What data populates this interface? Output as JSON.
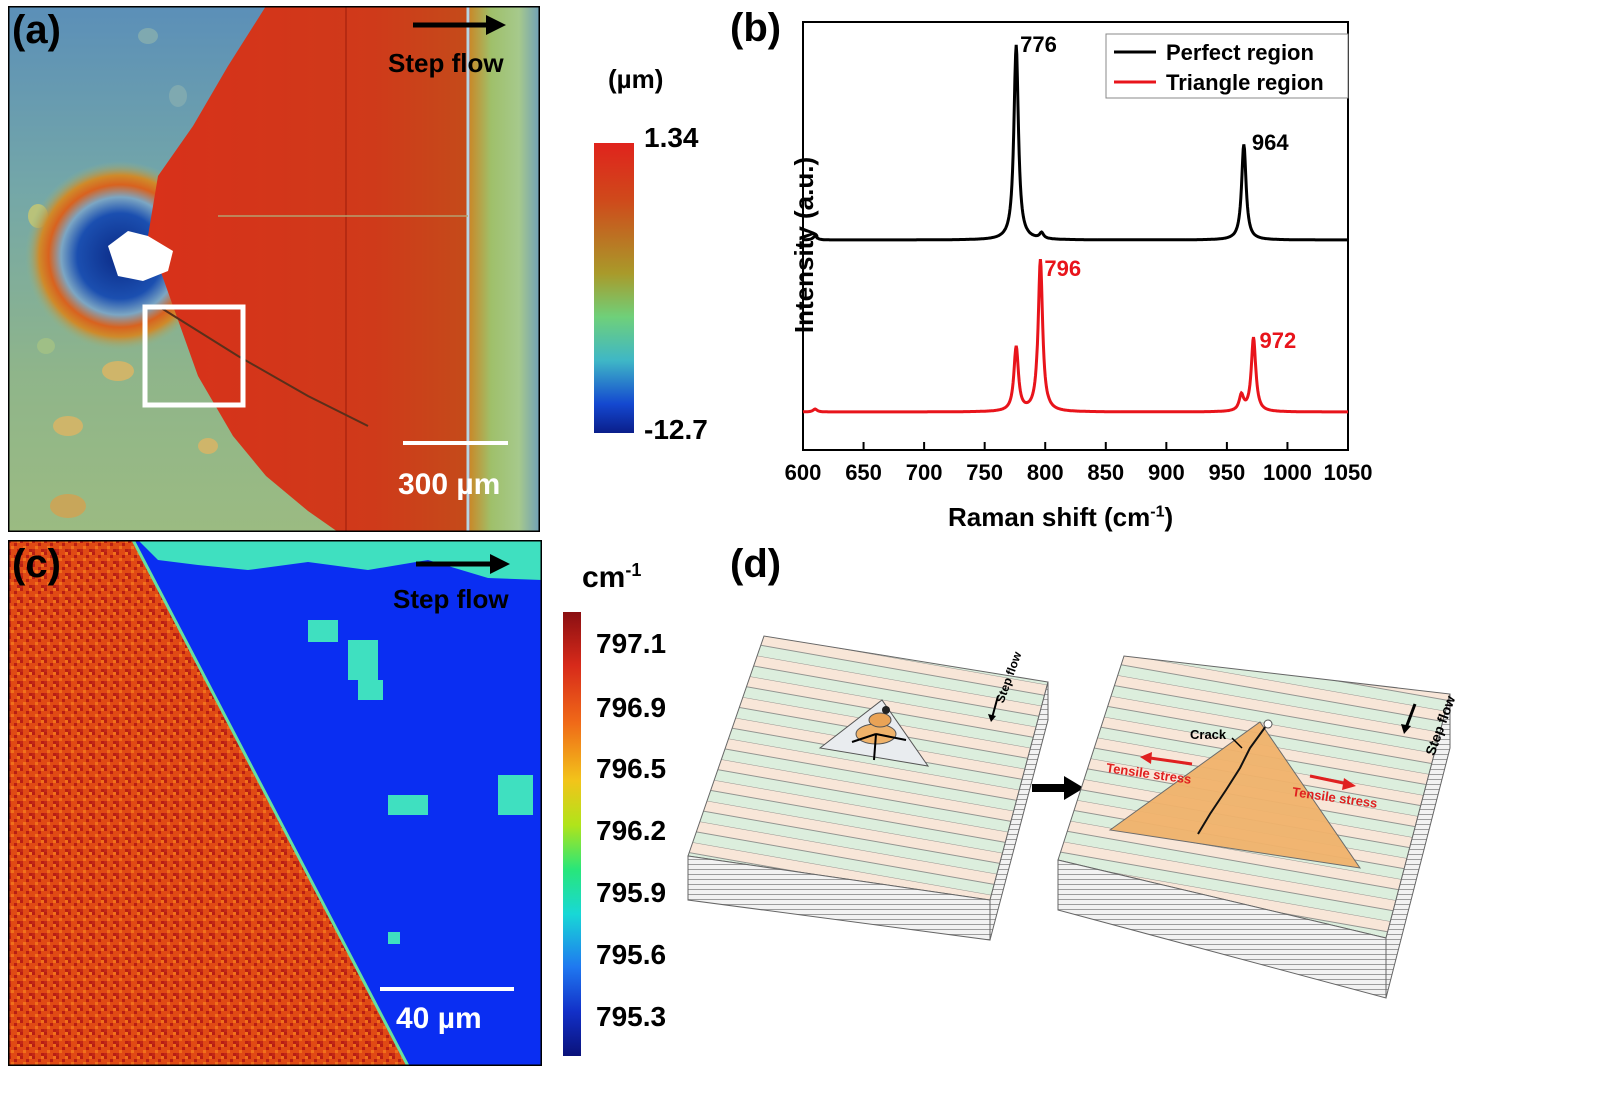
{
  "panel_a": {
    "label": "(a)",
    "step_flow": "Step flow",
    "scale_bar": "300 µm",
    "colorbar_unit": "(µm)",
    "colorbar_max": "1.34",
    "colorbar_min": "-12.7"
  },
  "panel_b": {
    "label": "(b)",
    "legend": [
      "Perfect region",
      "Triangle region"
    ],
    "peaks_perfect": [
      "776",
      "964"
    ],
    "peaks_triangle": [
      "796",
      "972"
    ],
    "xlabel": "Raman shift (cm",
    "xlabel_sup": "-1",
    "xlabel_end": ")",
    "ylabel": "Intensity (a.u.)"
  },
  "panel_c": {
    "label": "(c)",
    "step_flow": "Step flow",
    "scale_bar": "40 µm",
    "colorbar_unit": "cm",
    "colorbar_unit_sup": "-1",
    "colorbar_ticks": [
      "797.1",
      "796.9",
      "796.5",
      "796.2",
      "795.9",
      "795.6",
      "795.3"
    ]
  },
  "panel_d": {
    "label": "(d)",
    "step_flow_left": "Step flow",
    "step_flow_right": "Step flow",
    "crack": "Crack",
    "tensile_left": "Tensile stress",
    "tensile_right": "Tensile stress"
  },
  "colors": {
    "perfect": "#000000",
    "triangle": "#e8141b",
    "map_red": "#d7351b",
    "map_blue": "#0a2ef2"
  },
  "chart_data": {
    "type": "line",
    "xlabel": "Raman shift (cm-1)",
    "ylabel": "Intensity (a.u.)",
    "xlim": [
      600,
      1050
    ],
    "x_ticks": [
      600,
      650,
      700,
      750,
      800,
      850,
      900,
      950,
      1000,
      1050
    ],
    "legend_position": "top-right",
    "series": [
      {
        "name": "Perfect region",
        "color": "#000000",
        "peaks": [
          {
            "x": 776,
            "rel_height": 1.0
          },
          {
            "x": 964,
            "rel_height": 0.49
          }
        ],
        "offset": 1.0
      },
      {
        "name": "Triangle region",
        "color": "#e8141b",
        "peaks": [
          {
            "x": 776,
            "rel_height": 0.33
          },
          {
            "x": 796,
            "rel_height": 0.78
          },
          {
            "x": 962,
            "rel_height": 0.08
          },
          {
            "x": 972,
            "rel_height": 0.38
          }
        ],
        "offset": 0.0
      }
    ],
    "annotations": [
      "776",
      "964",
      "796",
      "972"
    ]
  }
}
